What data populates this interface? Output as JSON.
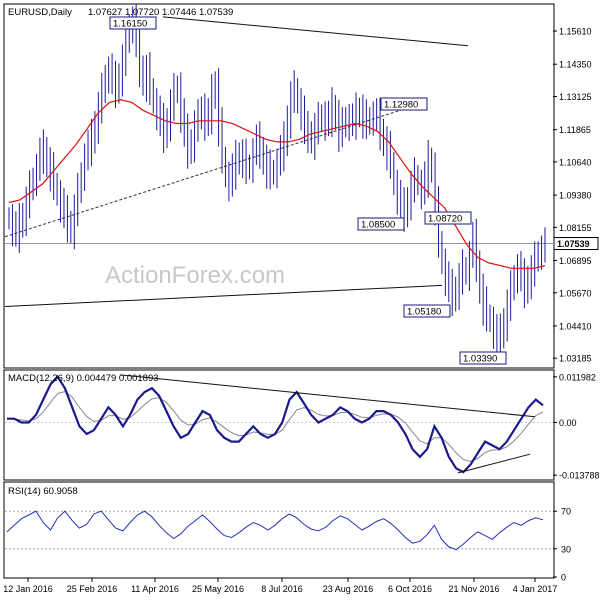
{
  "header": {
    "symbol_label": "EURUSD,Daily",
    "ohlc": "1.07627 1.07720 1.07446 1.07539"
  },
  "watermark": "ActionForex.com",
  "chart_data": [
    {
      "type": "candlestick",
      "panel": "price",
      "ylim": [
        1.0285,
        1.166
      ],
      "y_ticks": [
        "1.15610",
        "1.14350",
        "1.13125",
        "1.11865",
        "1.10640",
        "1.09380",
        "1.08155",
        "1.06895",
        "1.05670",
        "1.04410",
        "1.03185"
      ],
      "current_price_label": "1.07539",
      "colors": {
        "bars": "#1b1b99",
        "moving_average": "#dd1111",
        "trendlines": "#111111"
      },
      "close_series": [
        1.085,
        1.081,
        1.079,
        1.083,
        1.086,
        1.091,
        1.096,
        1.1,
        1.104,
        1.109,
        1.111,
        1.106,
        1.103,
        1.098,
        1.094,
        1.09,
        1.086,
        1.083,
        1.081,
        1.088,
        1.095,
        1.102,
        1.108,
        1.112,
        1.115,
        1.121,
        1.127,
        1.133,
        1.139,
        1.141,
        1.137,
        1.134,
        1.139,
        1.145,
        1.152,
        1.158,
        1.16,
        1.151,
        1.142,
        1.137,
        1.141,
        1.134,
        1.129,
        1.125,
        1.121,
        1.117,
        1.122,
        1.128,
        1.133,
        1.135,
        1.124,
        1.117,
        1.111,
        1.114,
        1.12,
        1.123,
        1.127,
        1.121,
        1.124,
        1.132,
        1.136,
        1.12,
        1.108,
        1.101,
        1.098,
        1.103,
        1.107,
        1.109,
        1.108,
        1.104,
        1.105,
        1.11,
        1.114,
        1.111,
        1.107,
        1.104,
        1.102,
        1.103,
        1.106,
        1.11,
        1.114,
        1.123,
        1.131,
        1.134,
        1.129,
        1.125,
        1.118,
        1.117,
        1.115,
        1.119,
        1.122,
        1.124,
        1.121,
        1.123,
        1.127,
        1.124,
        1.118,
        1.12,
        1.123,
        1.121,
        1.122,
        1.125,
        1.126,
        1.123,
        1.121,
        1.123,
        1.124,
        1.123,
        1.118,
        1.114,
        1.111,
        1.106,
        1.098,
        1.093,
        1.089,
        1.087,
        1.092,
        1.097,
        1.101,
        1.098,
        1.095,
        1.1,
        1.107,
        1.104,
        1.09,
        1.076,
        1.068,
        1.062,
        1.058,
        1.055,
        1.058,
        1.062,
        1.066,
        1.064,
        1.071,
        1.077,
        1.068,
        1.058,
        1.052,
        1.048,
        1.046,
        1.042,
        1.039,
        1.041,
        1.046,
        1.052,
        1.058,
        1.063,
        1.066,
        1.062,
        1.058,
        1.062,
        1.065,
        1.069,
        1.072,
        1.073,
        1.075
      ],
      "moving_average": [
        1.091,
        1.092,
        1.095,
        1.098,
        1.103,
        1.108,
        1.113,
        1.119,
        1.125,
        1.129,
        1.13,
        1.129,
        1.126,
        1.124,
        1.122,
        1.121,
        1.121,
        1.122,
        1.122,
        1.122,
        1.121,
        1.119,
        1.117,
        1.115,
        1.114,
        1.114,
        1.115,
        1.117,
        1.118,
        1.119,
        1.12,
        1.121,
        1.12,
        1.118,
        1.114,
        1.108,
        1.102,
        1.097,
        1.093,
        1.089,
        1.082,
        1.075,
        1.07,
        1.068,
        1.067,
        1.066,
        1.066,
        1.066,
        1.067
      ],
      "annotations": [
        {
          "label": "1.16150",
          "value": 1.1615
        },
        {
          "label": "1.12980",
          "value": 1.1298
        },
        {
          "label": "1.08500",
          "value": 1.085
        },
        {
          "label": "1.08720",
          "value": 1.0872
        },
        {
          "label": "1.05180",
          "value": 1.0518
        },
        {
          "label": "1.03390",
          "value": 1.0339
        }
      ]
    },
    {
      "type": "line",
      "panel": "macd",
      "label": "MACD(12,26,9) 0.004479 0.001893",
      "ylim": [
        -0.0148,
        0.0135
      ],
      "y_ticks": [
        "0.011982",
        "0.00",
        "-0.013788"
      ],
      "colors": {
        "macd": "#1a1a8c",
        "signal": "#888888",
        "trendlines": "#111111"
      },
      "macd": [
        0.001,
        0.001,
        0.0,
        0.0,
        0.002,
        0.006,
        0.01,
        0.012,
        0.009,
        0.004,
        -0.001,
        -0.003,
        -0.002,
        0.001,
        0.004,
        0.002,
        -0.001,
        0.002,
        0.006,
        0.008,
        0.009,
        0.007,
        0.003,
        -0.001,
        -0.004,
        -0.003,
        0.0,
        0.003,
        0.002,
        -0.002,
        -0.004,
        -0.005,
        -0.005,
        -0.003,
        -0.001,
        -0.003,
        -0.004,
        -0.003,
        0.0,
        0.006,
        0.008,
        0.005,
        0.002,
        0.0,
        0.001,
        0.002,
        0.004,
        0.003,
        0.001,
        0.0,
        0.001,
        0.003,
        0.003,
        0.002,
        0.0,
        -0.003,
        -0.007,
        -0.009,
        -0.007,
        -0.001,
        -0.004,
        -0.009,
        -0.012,
        -0.013,
        -0.011,
        -0.008,
        -0.005,
        -0.006,
        -0.007,
        -0.005,
        -0.002,
        0.001,
        0.004,
        0.006,
        0.0045
      ]
    },
    {
      "type": "line",
      "panel": "rsi",
      "label": "RSI(14) 60.9058",
      "ylim": [
        0,
        100
      ],
      "y_ticks": [
        "70",
        "30",
        "0"
      ],
      "colors": {
        "rsi": "#2233bb"
      },
      "rsi": [
        48,
        55,
        62,
        66,
        70,
        58,
        50,
        63,
        70,
        60,
        52,
        56,
        67,
        70,
        61,
        52,
        49,
        58,
        66,
        70,
        64,
        55,
        47,
        41,
        46,
        54,
        60,
        66,
        59,
        51,
        44,
        42,
        47,
        53,
        58,
        55,
        50,
        55,
        62,
        67,
        63,
        56,
        51,
        49,
        53,
        60,
        65,
        62,
        56,
        50,
        54,
        59,
        62,
        57,
        50,
        42,
        36,
        38,
        45,
        55,
        40,
        32,
        29,
        35,
        42,
        48,
        44,
        40,
        47,
        53,
        58,
        55,
        60,
        63,
        60.9
      ]
    }
  ],
  "x_axis": {
    "labels": [
      "12 Jan 2016",
      "25 Feb 2016",
      "11 Apr 2016",
      "25 May 2016",
      "8 Jul 2016",
      "23 Aug 2016",
      "6 Oct 2016",
      "21 Nov 2016",
      "4 Jan 2017"
    ]
  }
}
